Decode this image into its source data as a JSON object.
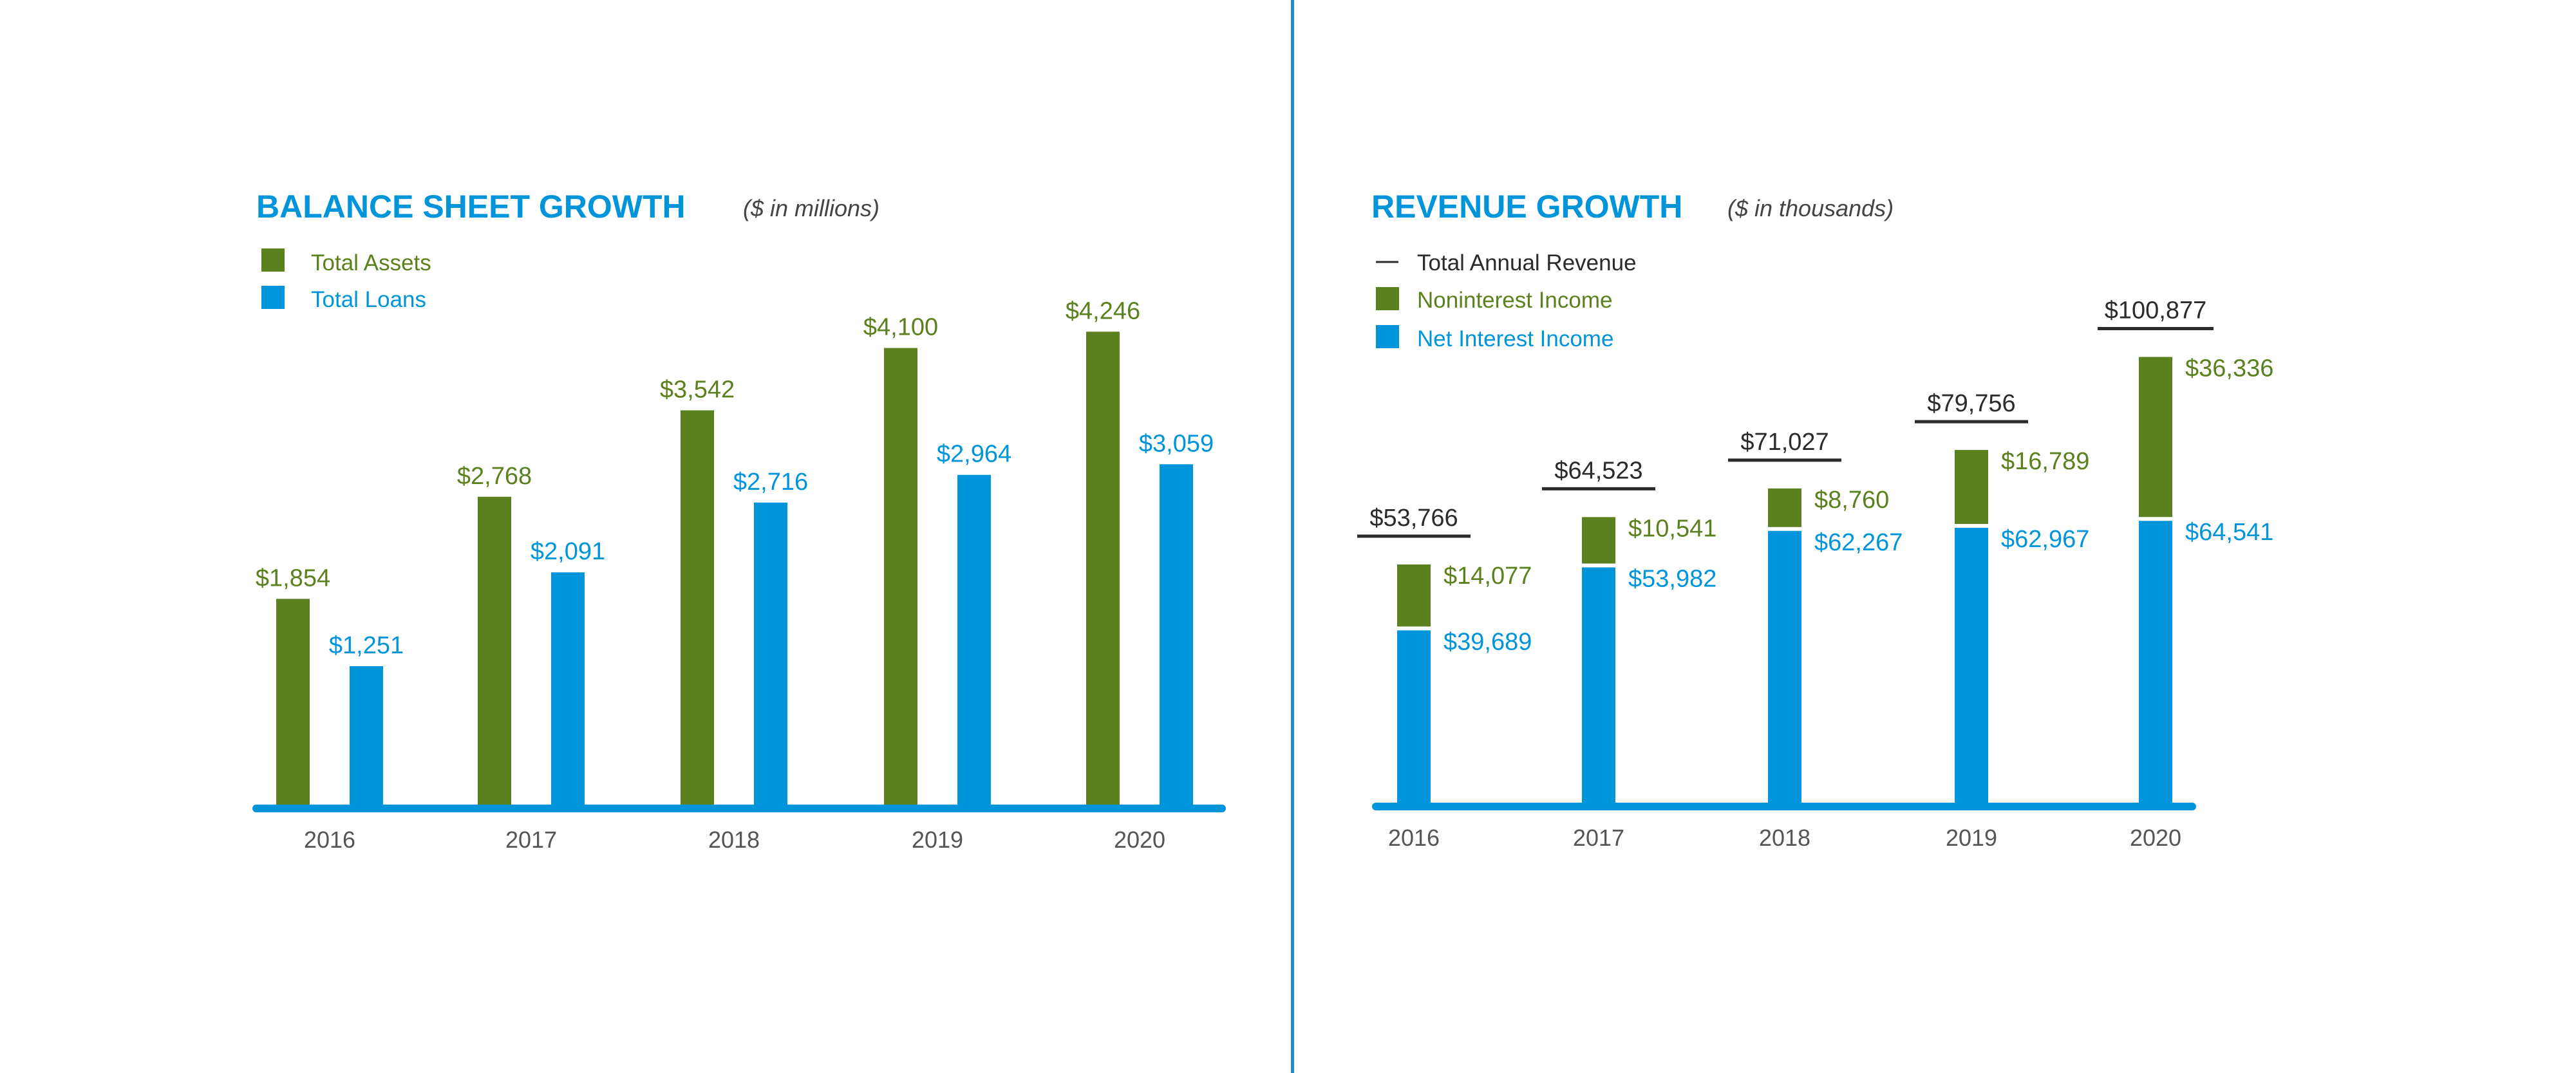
{
  "colors": {
    "green": "#5b811f",
    "blue": "#0095db",
    "title_blue": "#0095db",
    "dark": "#2b2b2b",
    "axis_text": "#555555",
    "divider": "#1d8ecb"
  },
  "left": {
    "title": "BALANCE SHEET GROWTH",
    "subtitle": "($ in millions)",
    "legend": [
      {
        "label": "Total Assets",
        "color_key": "green",
        "marker": "square"
      },
      {
        "label": "Total Loans",
        "color_key": "blue",
        "marker": "square"
      }
    ]
  },
  "right": {
    "title": "REVENUE GROWTH",
    "subtitle": "($ in thousands)",
    "legend": [
      {
        "label": "Total Annual Revenue",
        "color_key": "dark",
        "marker": "line"
      },
      {
        "label": "Noninterest Income",
        "color_key": "green",
        "marker": "square"
      },
      {
        "label": "Net Interest Income",
        "color_key": "blue",
        "marker": "square"
      }
    ]
  },
  "chart_data": [
    {
      "type": "bar",
      "title": "BALANCE SHEET GROWTH",
      "subtitle": "($ in millions)",
      "categories": [
        "2016",
        "2017",
        "2018",
        "2019",
        "2020"
      ],
      "series": [
        {
          "name": "Total Assets",
          "color": "#5b811f",
          "values": [
            1854,
            2768,
            3542,
            4100,
            4246
          ],
          "labels": [
            "$1,854",
            "$2,768",
            "$3,542",
            "$4,100",
            "$4,246"
          ]
        },
        {
          "name": "Total Loans",
          "color": "#0095db",
          "values": [
            1251,
            2091,
            2716,
            2964,
            3059
          ],
          "labels": [
            "$1,251",
            "$2,091",
            "$2,716",
            "$2,964",
            "$3,059"
          ]
        }
      ],
      "xlabel": "",
      "ylabel": "",
      "ylim": [
        0,
        5000
      ],
      "grid": false,
      "legend": "top-left"
    },
    {
      "type": "bar",
      "stacked": true,
      "title": "REVENUE GROWTH",
      "subtitle": "($ in thousands)",
      "categories": [
        "2016",
        "2017",
        "2018",
        "2019",
        "2020"
      ],
      "series": [
        {
          "name": "Net Interest Income",
          "color": "#0095db",
          "values": [
            39689,
            53982,
            62267,
            62967,
            64541
          ],
          "labels": [
            "$39,689",
            "$53,982",
            "$62,267",
            "$62,967",
            "$64,541"
          ]
        },
        {
          "name": "Noninterest Income",
          "color": "#5b811f",
          "values": [
            14077,
            10541,
            8760,
            16789,
            36336
          ],
          "labels": [
            "$14,077",
            "$10,541",
            "$8,760",
            "$16,789",
            "$36,336"
          ]
        }
      ],
      "totals": {
        "name": "Total Annual Revenue",
        "values": [
          53766,
          64523,
          71027,
          79756,
          100877
        ],
        "labels": [
          "$53,766",
          "$64,523",
          "$71,027",
          "$79,756",
          "$100,877"
        ]
      },
      "xlabel": "",
      "ylabel": "",
      "ylim": [
        0,
        115000
      ],
      "grid": false,
      "legend": "top-left"
    }
  ]
}
